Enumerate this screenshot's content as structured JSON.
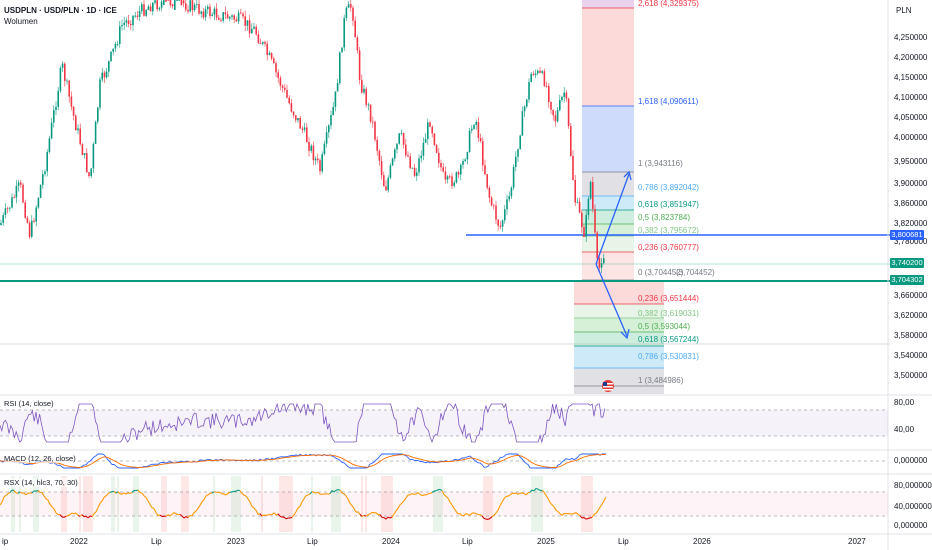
{
  "header": {
    "symbol": "USDPLN · USD/PLN · 1D · ICE",
    "volume_label": "Wolumen",
    "currency": "PLN"
  },
  "price_axis": {
    "labels": [
      "4,250000",
      "4,200000",
      "4,150000",
      "4,100000",
      "4,050000",
      "4,000000",
      "3,950000",
      "3,900000",
      "3,860000",
      "3,820000",
      "3,780000",
      "3,660000",
      "3,620000",
      "3,580000",
      "3,540000",
      "3,500000"
    ],
    "current_price": "3,740200",
    "line_price": "3,800681",
    "support_price": "3,704302",
    "current_color": "#089981",
    "line_color": "#2962ff",
    "support_color": "#089981"
  },
  "fib_upper": [
    {
      "text": "2,618 (4,329375)",
      "color": "#f23645"
    },
    {
      "text": "1,618 (4,090611)",
      "color": "#2962ff"
    },
    {
      "text": "1 (3,943116)",
      "color": "#787b86"
    },
    {
      "text": "0,786 (3,892042)",
      "color": "#4dabf5"
    },
    {
      "text": "0,618 (3,851947)",
      "color": "#089981"
    },
    {
      "text": "0,5 (3,823784)",
      "color": "#4caf50"
    },
    {
      "text": "0,382 (3,795672)",
      "color": "#81c784"
    },
    {
      "text": "0,236 (3,760777)",
      "color": "#f23645"
    },
    {
      "text": "0 (3,704452)",
      "color": "#787b86"
    },
    {
      "text": "(3,704452)",
      "color": "#787b86"
    }
  ],
  "fib_lower": [
    {
      "text": "0,236 (3,651444)",
      "color": "#f23645"
    },
    {
      "text": "0,382 (3,619031)",
      "color": "#81c784"
    },
    {
      "text": "0,5 (3,593044)",
      "color": "#4caf50"
    },
    {
      "text": "0,618 (3,567244)",
      "color": "#089981"
    },
    {
      "text": "0,786 (3,530831)",
      "color": "#4dabf5"
    },
    {
      "text": "1 (3,484986)",
      "color": "#787b86"
    }
  ],
  "rsi": {
    "title": "RSI (14, close)",
    "axis": [
      "80,00",
      "40,00"
    ]
  },
  "macd": {
    "title": "MACD (12, 26, close)",
    "axis": [
      "0,000000"
    ]
  },
  "rsx": {
    "title": "RSX (14, hlc3, 70, 30)",
    "axis": [
      "80,000000",
      "40,000000",
      "0,000000"
    ]
  },
  "time_axis": [
    "ip",
    "2022",
    "Lip",
    "2023",
    "Lip",
    "2024",
    "Lip",
    "2025",
    "Lip",
    "2026",
    "2027"
  ]
}
